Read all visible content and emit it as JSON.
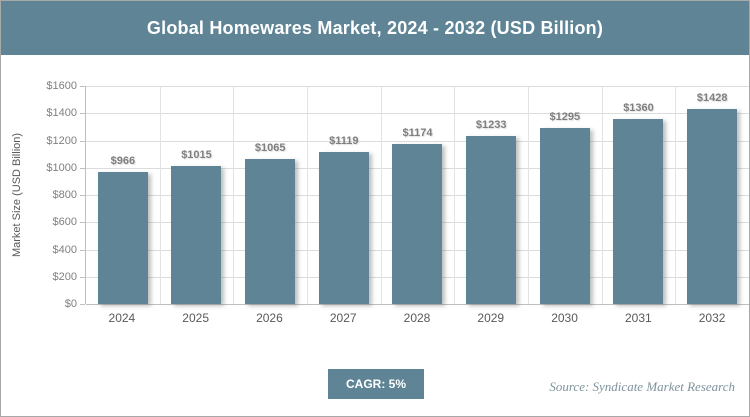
{
  "header": {
    "title": "Global Homewares Market, 2024 - 2032 (USD Billion)"
  },
  "chart_data": {
    "type": "bar",
    "title": "Global Homewares Market, 2024 - 2032 (USD Billion)",
    "categories": [
      "2024",
      "2025",
      "2026",
      "2027",
      "2028",
      "2029",
      "2030",
      "2031",
      "2032"
    ],
    "values": [
      966,
      1015,
      1065,
      1119,
      1174,
      1233,
      1295,
      1360,
      1428
    ],
    "value_labels": [
      "$966",
      "$1015",
      "$1065",
      "$1119",
      "$1174",
      "$1233",
      "$1295",
      "$1360",
      "$1428"
    ],
    "xlabel": "",
    "ylabel": "Market Size (USD Billion)",
    "ylim": [
      0,
      1600
    ],
    "yticks": [
      "$1600",
      "$1400",
      "$1200",
      "$1000",
      "$800",
      "$600",
      "$400",
      "$200",
      "$0"
    ],
    "grid": true,
    "legend": "none",
    "bar_color": "#5E8495"
  },
  "footer": {
    "cagr_label": "CAGR: 5%",
    "source": "Source: Syndicate Market Research"
  },
  "colors": {
    "accent_teal": "#5E8495",
    "gridline": "#dcdcdc",
    "axis": "#bfbfbf",
    "tick_text": "#808080",
    "category_text": "#595959",
    "source_text": "#7e939d"
  }
}
